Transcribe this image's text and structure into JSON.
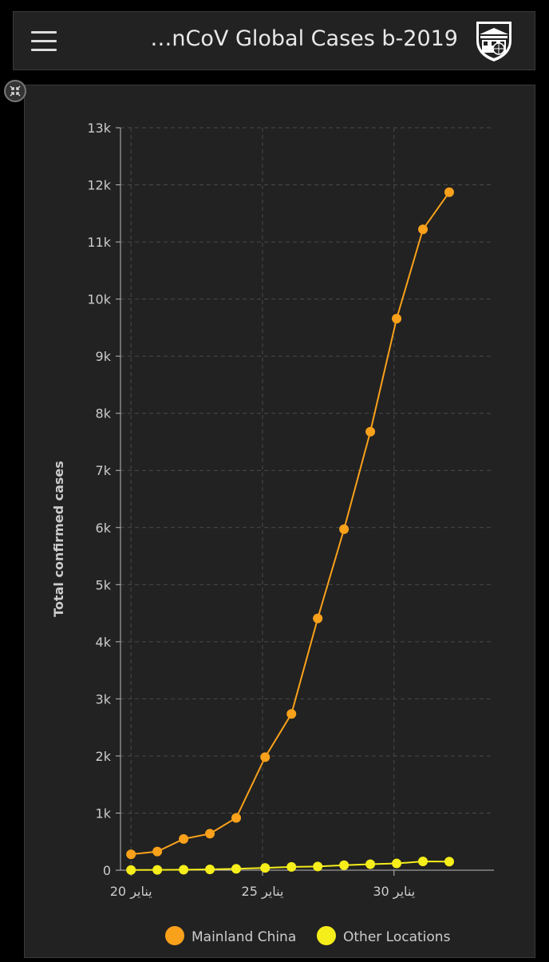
{
  "header": {
    "title": "…nCoV Global Cases b-2019"
  },
  "icons": {
    "menu": "hamburger-menu-icon",
    "logo": "jhu-shield-logo-icon",
    "collapse": "collapse-arrows-icon"
  },
  "colors": {
    "mainland": "#f9a11b",
    "other": "#f5ee1a",
    "background": "#222222",
    "axis": "#cccccc"
  },
  "chart_data": {
    "type": "line",
    "title": "",
    "xlabel": "",
    "ylabel": "Total confirmed cases",
    "ylim": [
      0,
      13000
    ],
    "y_ticks": [
      0,
      1000,
      2000,
      3000,
      4000,
      5000,
      6000,
      7000,
      8000,
      9000,
      10000,
      11000,
      12000,
      13000
    ],
    "y_tick_labels": [
      "0",
      "1k",
      "2k",
      "3k",
      "4k",
      "5k",
      "6k",
      "7k",
      "8k",
      "9k",
      "10k",
      "11k",
      "12k",
      "13k"
    ],
    "x": [
      20.0,
      21.0,
      22.0,
      23.0,
      24.0,
      25.1,
      26.1,
      27.1,
      28.1,
      29.1,
      30.1,
      31.1,
      32.1
    ],
    "xlim": [
      19.6,
      33.8
    ],
    "x_ticks": [
      20,
      25,
      30
    ],
    "x_tick_labels": [
      "20 يناير",
      "25 يناير",
      "30 يناير"
    ],
    "grid": true,
    "legend_position": "bottom",
    "series": [
      {
        "name": "Mainland China",
        "color": "#f9a11b",
        "values": [
          278,
          326,
          547,
          639,
          916,
          1979,
          2737,
          4409,
          5970,
          7678,
          9658,
          11221,
          11871
        ]
      },
      {
        "name": "Other Locations",
        "color": "#f5ee1a",
        "values": [
          4,
          6,
          8,
          14,
          25,
          40,
          57,
          64,
          87,
          105,
          118,
          153,
          150
        ]
      }
    ]
  }
}
